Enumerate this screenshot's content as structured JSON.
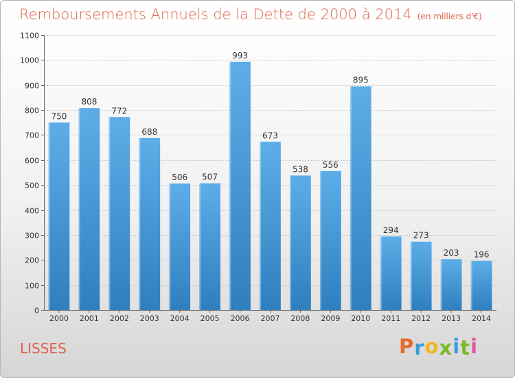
{
  "chart_data": {
    "type": "bar",
    "title": "Remboursements Annuels de la Dette de 2000 à 2014",
    "unit_note": "(en milliers d'€)",
    "xlabel": "",
    "ylabel": "",
    "categories": [
      "2000",
      "2001",
      "2002",
      "2003",
      "2004",
      "2005",
      "2006",
      "2007",
      "2008",
      "2009",
      "2010",
      "2011",
      "2012",
      "2013",
      "2014"
    ],
    "values": [
      750,
      808,
      772,
      688,
      506,
      507,
      993,
      673,
      538,
      556,
      895,
      294,
      273,
      203,
      196
    ],
    "ylim": [
      0,
      1100
    ],
    "yticks": [
      0,
      100,
      200,
      300,
      400,
      500,
      600,
      700,
      800,
      900,
      1000,
      1100
    ],
    "grid": true,
    "bar_color_top": "#5dade8",
    "bar_color_bottom": "#2f7fbf"
  },
  "footer": {
    "commune": "LISSES"
  },
  "logo": {
    "letters": [
      "P",
      "r",
      "o",
      "x",
      "i",
      "t",
      "i"
    ],
    "colors": [
      "#e86a2a",
      "#3a9bd8",
      "#f2b824",
      "#7ab929",
      "#3a9bd8",
      "#7ab929",
      "#e05a9a"
    ]
  }
}
